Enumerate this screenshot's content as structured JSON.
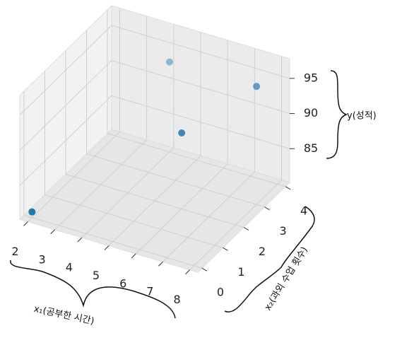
{
  "chart_data": {
    "type": "scatter3d",
    "xlabel": "x₁(공부한 시간)",
    "ylabel": "x₂(과외 수업 횟수)",
    "zlabel": "y(성적)",
    "x": [
      2,
      4,
      6,
      8
    ],
    "y": [
      0,
      4,
      2,
      3
    ],
    "z": [
      81,
      93,
      91,
      97
    ],
    "color": "#1f77b4",
    "xlim": [
      1.7,
      8.3
    ],
    "ylim": [
      -0.2,
      4.2
    ],
    "zlim": [
      80.2,
      97.8
    ],
    "xticks": [
      2,
      3,
      4,
      5,
      6,
      7,
      8
    ],
    "yticks": [
      0,
      1,
      2,
      3,
      4
    ],
    "zticks": [
      85,
      90,
      95
    ],
    "grid": true
  }
}
